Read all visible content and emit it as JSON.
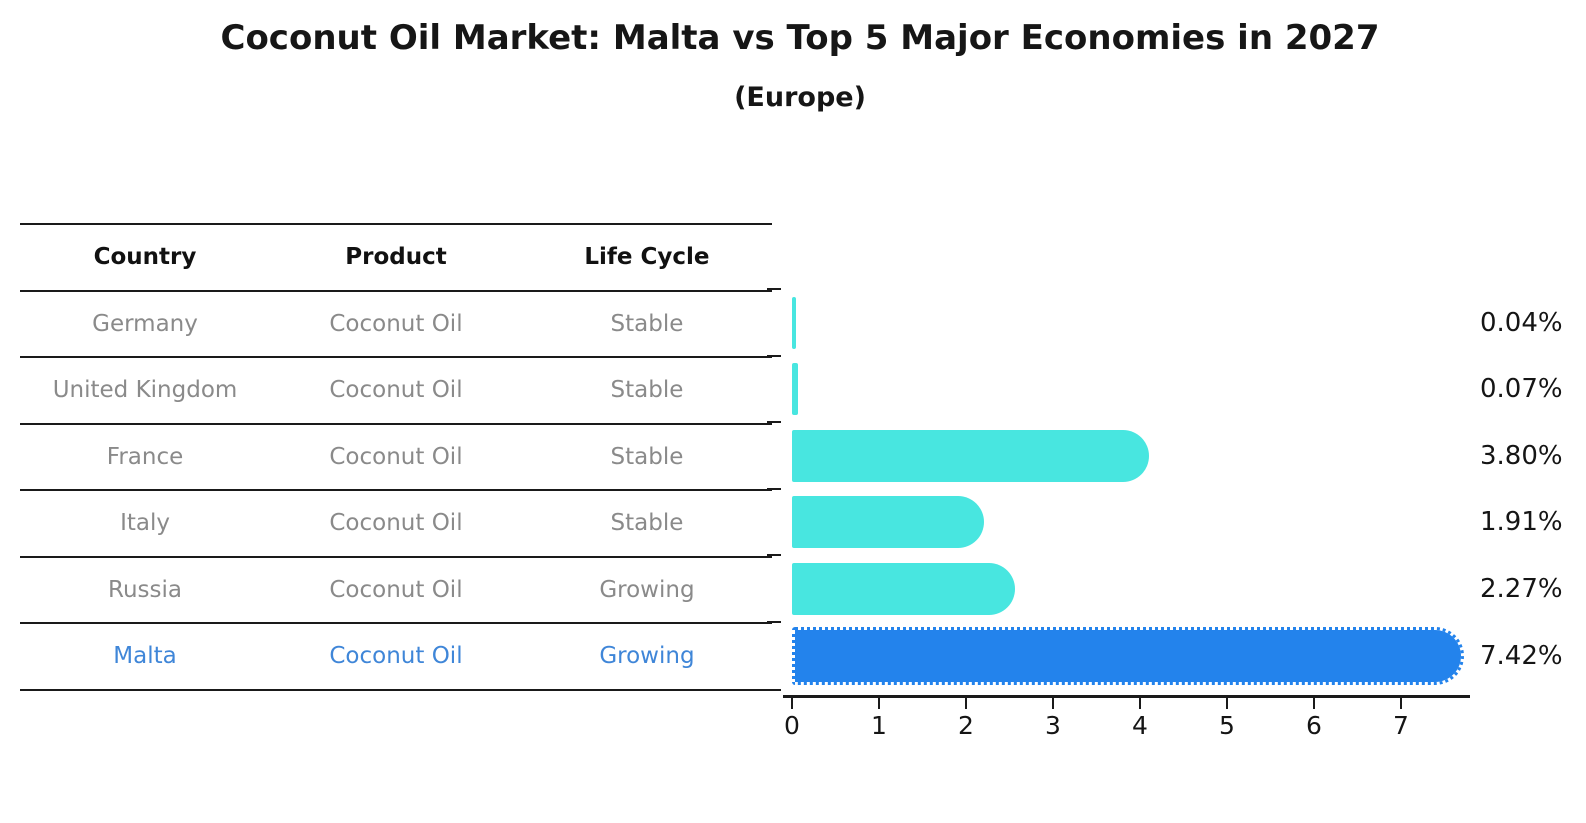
{
  "title": "Coconut Oil Market: Malta vs Top 5 Major Economies in 2027",
  "subtitle": "(Europe)",
  "table": {
    "headers": [
      "Country",
      "Product",
      "Life Cycle"
    ],
    "rows": [
      {
        "country": "Germany",
        "product": "Coconut Oil",
        "life_cycle": "Stable",
        "highlight": false
      },
      {
        "country": "United Kingdom",
        "product": "Coconut Oil",
        "life_cycle": "Stable",
        "highlight": false
      },
      {
        "country": "France",
        "product": "Coconut Oil",
        "life_cycle": "Stable",
        "highlight": false
      },
      {
        "country": "Italy",
        "product": "Coconut Oil",
        "life_cycle": "Stable",
        "highlight": false
      },
      {
        "country": "Russia",
        "product": "Coconut Oil",
        "life_cycle": "Growing",
        "highlight": false
      },
      {
        "country": "Malta",
        "product": "Coconut Oil",
        "life_cycle": "Growing",
        "highlight": true
      }
    ]
  },
  "chart_data": {
    "type": "bar",
    "orientation": "horizontal",
    "categories": [
      "Germany",
      "United Kingdom",
      "France",
      "Italy",
      "Russia",
      "Malta"
    ],
    "values": [
      0.04,
      0.07,
      3.8,
      1.91,
      2.27,
      7.42
    ],
    "value_labels": [
      "0.04%",
      "0.07%",
      "3.80%",
      "1.91%",
      "2.27%",
      "7.42%"
    ],
    "x_ticks": [
      "0",
      "1",
      "2",
      "3",
      "4",
      "5",
      "6",
      "7"
    ],
    "xlim": [
      0,
      7.85
    ],
    "grid": false,
    "legend": false,
    "bar_color": "#48E6E0",
    "highlight_color": "#2383EC",
    "highlight_index": 5,
    "text_color_rows": "#8a8a8a",
    "text_color_highlight": "#3f86d8"
  }
}
